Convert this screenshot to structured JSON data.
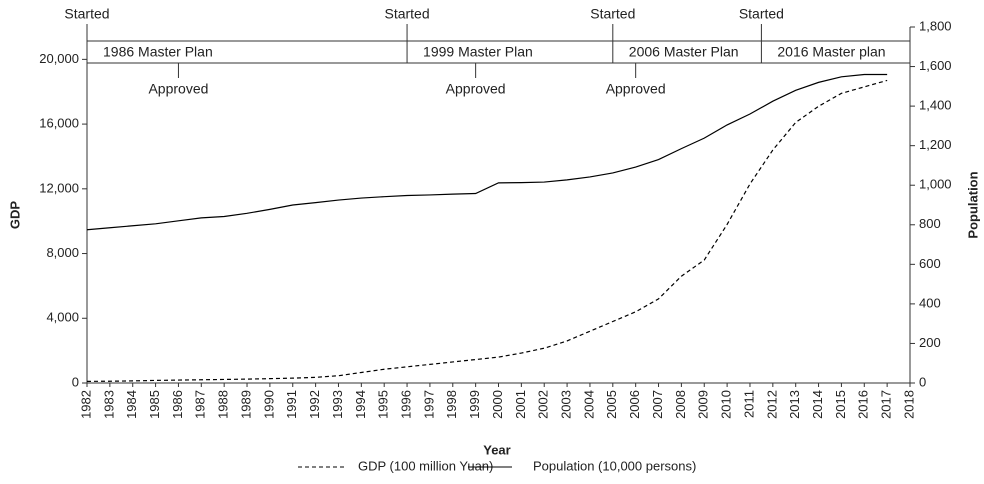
{
  "chart_data": {
    "type": "line",
    "x_label": "Year",
    "y_label": "GDP",
    "y2_label": "Population",
    "x": [
      1982,
      1983,
      1984,
      1985,
      1986,
      1987,
      1988,
      1989,
      1990,
      1991,
      1992,
      1993,
      1994,
      1995,
      1996,
      1997,
      1998,
      1999,
      2000,
      2001,
      2002,
      2003,
      2004,
      2005,
      2006,
      2007,
      2008,
      2009,
      2010,
      2011,
      2012,
      2013,
      2014,
      2015,
      2016,
      2017
    ],
    "series": [
      {
        "name": "GDP (100 million Yuan)",
        "color": "#000000",
        "style": "dashed",
        "values": [
          100,
          110,
          130,
          160,
          180,
          200,
          220,
          240,
          270,
          300,
          350,
          450,
          650,
          850,
          1000,
          1150,
          1300,
          1450,
          1600,
          1850,
          2150,
          2600,
          3200,
          3800,
          4400,
          5200,
          6600,
          7600,
          9800,
          12300,
          14400,
          16100,
          17100,
          17900,
          18300,
          18700
        ]
      },
      {
        "name": "Population (10,000 persons)",
        "color": "#000000",
        "style": "solid",
        "axis": "y2",
        "values": [
          775,
          785,
          795,
          805,
          820,
          835,
          842,
          858,
          878,
          900,
          912,
          925,
          935,
          942,
          948,
          951,
          955,
          958,
          1012,
          1013,
          1016,
          1027,
          1042,
          1062,
          1092,
          1130,
          1185,
          1238,
          1305,
          1360,
          1425,
          1480,
          1520,
          1548,
          1560,
          1560
        ]
      }
    ],
    "xlim": [
      1982,
      2018
    ],
    "xticks": [
      1982,
      1983,
      1984,
      1985,
      1986,
      1987,
      1988,
      1989,
      1990,
      1991,
      1992,
      1993,
      1994,
      1995,
      1996,
      1997,
      1998,
      1999,
      2000,
      2001,
      2002,
      2003,
      2004,
      2005,
      2006,
      2007,
      2008,
      2009,
      2010,
      2011,
      2012,
      2013,
      2014,
      2015,
      2016,
      2017,
      2018
    ],
    "ylim": [
      0,
      22000
    ],
    "yticks": [
      0,
      {
        "value": 4000,
        "label": "4,000"
      },
      {
        "value": 8000,
        "label": "8,000"
      },
      {
        "value": 12000,
        "label": "12,000"
      },
      {
        "value": 16000,
        "label": "16,000"
      },
      {
        "value": 20000,
        "label": "20,000"
      }
    ],
    "y2lim": [
      0,
      1800
    ],
    "y2ticks": [
      0,
      200,
      400,
      600,
      800,
      {
        "value": 1000,
        "label": "1,000"
      },
      {
        "value": 1200,
        "label": "1,200"
      },
      {
        "value": 1400,
        "label": "1,400"
      },
      {
        "value": 1600,
        "label": "1,600"
      },
      {
        "value": 1800,
        "label": "1,800"
      }
    ],
    "plans": [
      {
        "label": "1986 Master Plan",
        "start_label": "Started",
        "start": 1982,
        "approve_label": "Approved",
        "approve": 1986
      },
      {
        "label": "1999 Master Plan",
        "start_label": "Started",
        "start": 1996,
        "approve_label": "Approved",
        "approve": 1999
      },
      {
        "label": "2006 Master Plan",
        "start_label": "Started",
        "start": 2005,
        "approve_label": "Approved",
        "approve": 2006
      },
      {
        "label": "2016 Master plan",
        "start_label": "Started",
        "start": 2011.5
      }
    ],
    "legend": "bottom"
  }
}
